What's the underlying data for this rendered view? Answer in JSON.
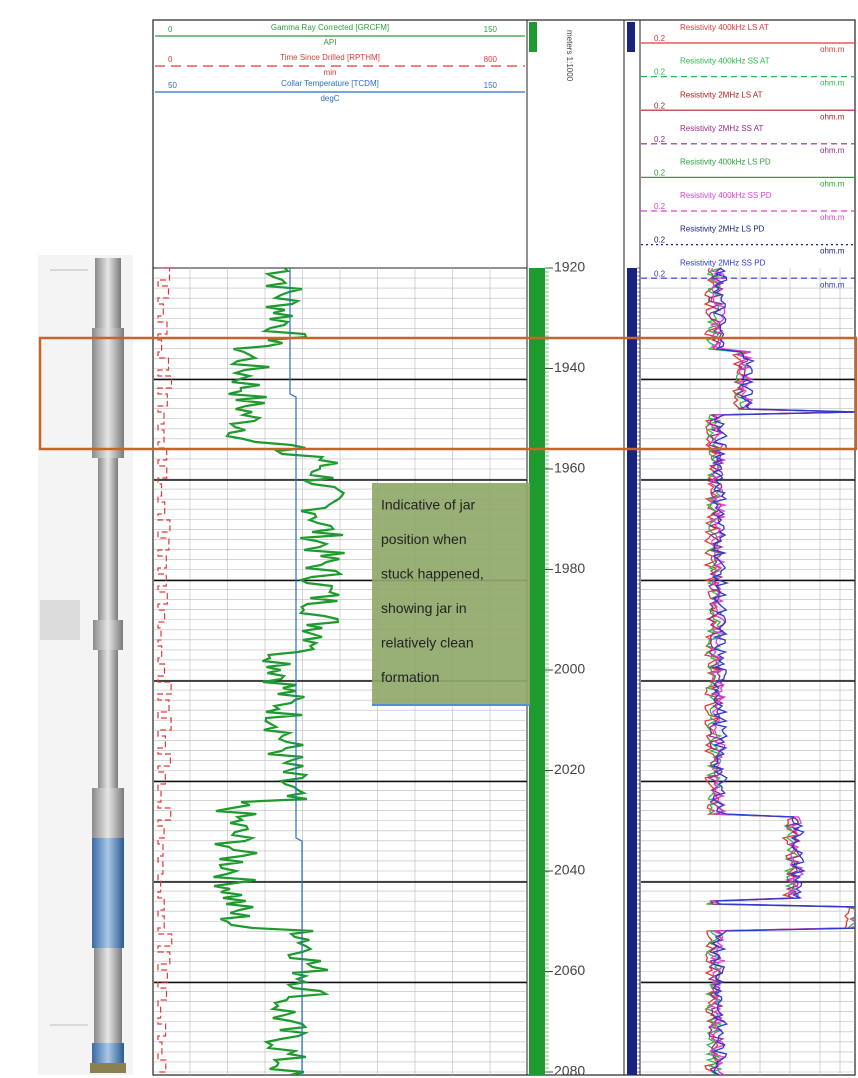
{
  "header": {
    "track1": [
      {
        "left": "0",
        "name": "Gamma Ray Corrected [GRCFM]",
        "right": "150",
        "unit": "API",
        "color": "#2e9e3e"
      },
      {
        "left": "0",
        "name": "Time Since Drilled [RPTHM]",
        "right": "800",
        "unit": "min",
        "color": "#e03a3a"
      },
      {
        "left": "50",
        "name": "Collar Temperature [TCDM]",
        "right": "150",
        "unit": "degC",
        "color": "#2a6fc0"
      }
    ],
    "depth_label": "meters 1:1000",
    "resistivity": [
      {
        "name": "Resistivity 400kHz LS AT",
        "left": "0.2",
        "unit": "ohm.m",
        "color": "#e03a3a"
      },
      {
        "name": "Resistivity 400kHz SS AT",
        "left": "0.2",
        "unit": "ohm.m",
        "color": "#2eb84a"
      },
      {
        "name": "Resistivity 2MHz LS AT",
        "left": "0.2",
        "unit": "ohm.m",
        "color": "#b02020"
      },
      {
        "name": "Resistivity 2MHz SS AT",
        "left": "0.2",
        "unit": "ohm.m",
        "color": "#9a2a8a"
      },
      {
        "name": "Resistivity 400kHz LS PD",
        "left": "0.2",
        "unit": "ohm.m",
        "color": "#2e9e3e"
      },
      {
        "name": "Resistivity 400kHz SS PD",
        "left": "0.2",
        "unit": "ohm.m",
        "color": "#e040d0"
      },
      {
        "name": "Resistivity 2MHz LS PD",
        "left": "0.2",
        "unit": "ohm.m",
        "color": "#1a237e"
      },
      {
        "name": "Resistivity 2MHz SS PD",
        "left": "0.2",
        "unit": "ohm.m",
        "color": "#2a3ad0"
      }
    ]
  },
  "depth": {
    "range": [
      1920,
      2080
    ],
    "ticks": [
      1920,
      1940,
      1960,
      1980,
      2000,
      2020,
      2040,
      2060,
      2080
    ]
  },
  "annotation": {
    "lines": [
      "Indicative of jar",
      "position when",
      "stuck happened,",
      "showing jar in",
      "relatively clean",
      "formation"
    ]
  }
}
